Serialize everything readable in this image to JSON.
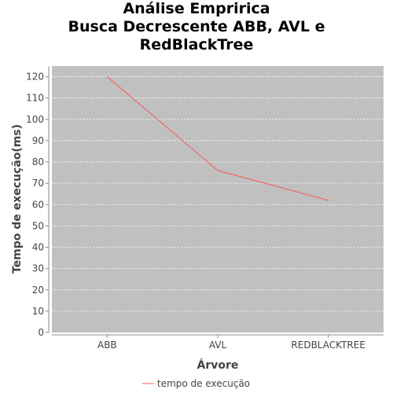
{
  "chart_data": {
    "type": "line",
    "title_lines": [
      "Análise Empririca",
      "Busca Decrescente ABB, AVL e",
      "RedBlackTree"
    ],
    "xlabel": "Árvore",
    "ylabel": "Tempo de execução(ms)",
    "categories": [
      "ABB",
      "AVL",
      "REDBLACKTREE"
    ],
    "series": [
      {
        "name": "tempo de execução",
        "values": [
          120,
          76,
          62
        ],
        "color": "#ff5555"
      }
    ],
    "ylim": [
      0,
      125
    ],
    "yticks": [
      0,
      10,
      20,
      30,
      40,
      50,
      60,
      70,
      80,
      90,
      100,
      110,
      120
    ],
    "grid": true,
    "plot_background": "#c0c0c0",
    "legend_position": "bottom"
  }
}
